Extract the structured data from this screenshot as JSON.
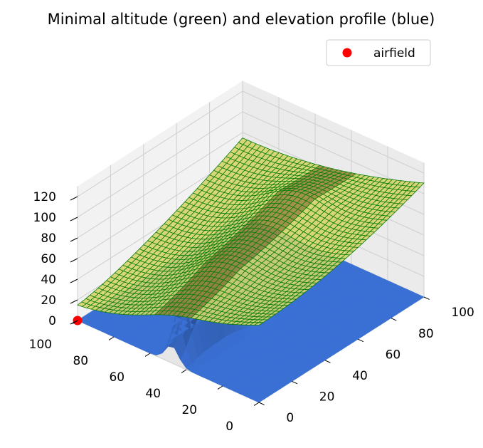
{
  "chart_data": {
    "type": "surface3d",
    "title": "Minimal altitude (green) and elevation profile (blue)",
    "xlabel": "",
    "ylabel": "",
    "zlabel": "",
    "xlim": [
      0,
      100
    ],
    "ylim": [
      0,
      100
    ],
    "zlim": [
      0,
      130
    ],
    "x_ticks": [
      "0",
      "20",
      "40",
      "60",
      "80",
      "100"
    ],
    "y_ticks": [
      "0",
      "20",
      "40",
      "60",
      "80",
      "100"
    ],
    "z_ticks": [
      "0",
      "20",
      "40",
      "60",
      "80",
      "100",
      "120"
    ],
    "grid": true,
    "legend": {
      "placement": "top-right",
      "entries": [
        {
          "label": "airfield",
          "marker": "circle",
          "color": "#ff0000"
        }
      ]
    },
    "series": [
      {
        "name": "",
        "kind": "surface",
        "description_color": "green mesh over yellow fill",
        "fill": "#d9d96a",
        "edge": "#0a8a0a"
      },
      {
        "name": "",
        "kind": "surface",
        "description_color": "blue",
        "fill": "#3a6fd1",
        "edge": "#2a5fb8"
      }
    ],
    "airfield_point": {
      "x": 0,
      "y": 100,
      "z": 0
    },
    "colors": {
      "minimal_altitude_fill": "#d4d46a",
      "minimal_altitude_edge": "#0b7d0b",
      "elevation_fill": "#3c70d4",
      "airfield": "#ff0000"
    }
  }
}
